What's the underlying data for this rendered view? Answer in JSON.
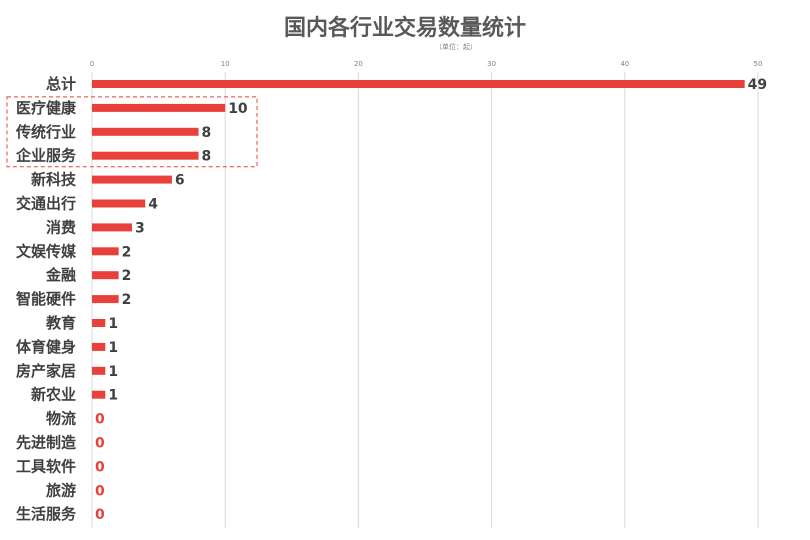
{
  "title": "国内各行业交易数量统计",
  "subtitle": "（单位：起）",
  "chart_data": {
    "type": "bar",
    "orientation": "horizontal",
    "title": "国内各行业交易数量统计",
    "subtitle": "（单位：起）",
    "categories": [
      "总计",
      "医疗健康",
      "传统行业",
      "企业服务",
      "新科技",
      "交通出行",
      "消费",
      "文娱传媒",
      "金融",
      "智能硬件",
      "教育",
      "体育健身",
      "房产家居",
      "新农业",
      "物流",
      "先进制造",
      "工具软件",
      "旅游",
      "生活服务"
    ],
    "values": [
      49,
      10,
      8,
      8,
      6,
      4,
      3,
      2,
      2,
      2,
      1,
      1,
      1,
      1,
      0,
      0,
      0,
      0,
      0
    ],
    "xlim": [
      0,
      50
    ],
    "xticks": [
      0,
      10,
      20,
      30,
      40,
      50
    ],
    "grid": true,
    "legend": "none",
    "highlight_categories": [
      "医疗健康",
      "传统行业",
      "企业服务"
    ],
    "colors": {
      "bar": "#e8413b",
      "value_label": "#404040",
      "zero_label": "#e8413b",
      "grid": "#d9d9d9",
      "highlight_box": "#e8413b"
    }
  }
}
